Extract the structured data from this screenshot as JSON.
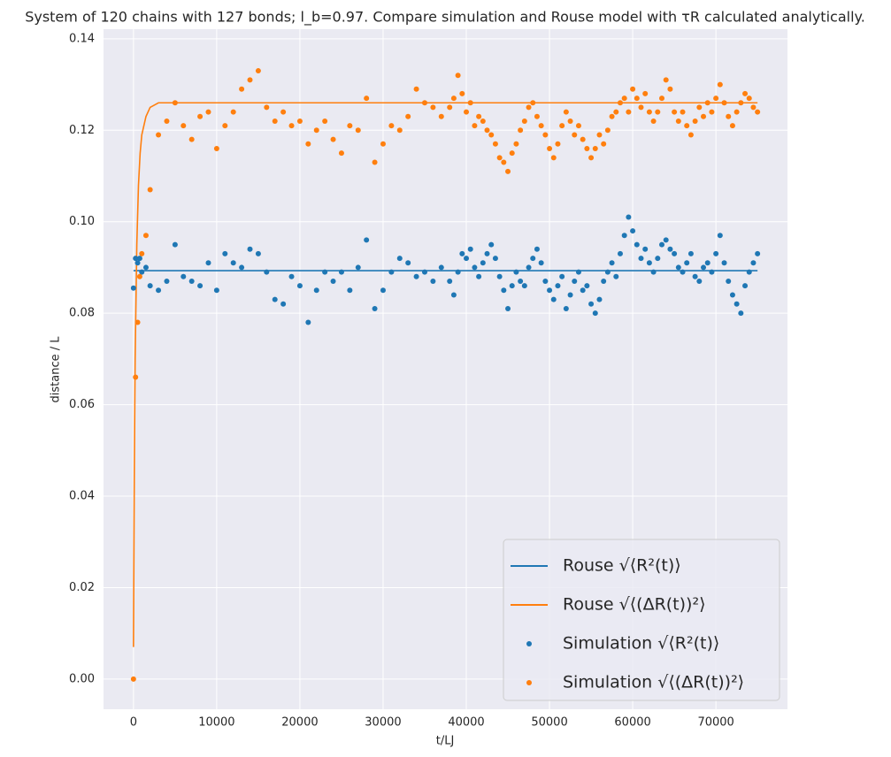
{
  "chart_data": {
    "type": "scatter",
    "title": "System of 120 chains with 127 bonds; l_b=0.97. Compare simulation and Rouse model with τR calculated analytically.",
    "xlabel": "t/LJ",
    "ylabel": "distance / L",
    "xlim": [
      -3600,
      78600
    ],
    "ylim": [
      -0.0066,
      0.1421
    ],
    "xticks": [
      0,
      10000,
      20000,
      30000,
      40000,
      50000,
      60000,
      70000
    ],
    "yticks": [
      {
        "value": 0,
        "label": "0.00"
      },
      {
        "value": 0.02,
        "label": "0.02"
      },
      {
        "value": 0.04,
        "label": "0.04"
      },
      {
        "value": 0.06,
        "label": "0.06"
      },
      {
        "value": 0.08,
        "label": "0.08"
      },
      {
        "value": 0.1,
        "label": "0.10"
      },
      {
        "value": 0.12,
        "label": "0.12"
      },
      {
        "value": 0.14,
        "label": "0.14"
      }
    ],
    "grid": true,
    "background": "#eaeaf2",
    "legend": "lower right",
    "series": [
      {
        "name": "Rouse √⟨R²(t)⟩",
        "type": "line",
        "color": "#1f77b4",
        "x": [
          0,
          75000
        ],
        "values": [
          0.0893,
          0.0893
        ]
      },
      {
        "name": "Rouse √⟨(ΔR(t))²⟩",
        "type": "line",
        "color": "#ff7f0e",
        "x": [
          0,
          100,
          200,
          400,
          600,
          800,
          1000,
          1500,
          2000,
          3000,
          75000
        ],
        "values": [
          0.007,
          0.045,
          0.07,
          0.095,
          0.108,
          0.115,
          0.119,
          0.123,
          0.125,
          0.126,
          0.126
        ]
      },
      {
        "name": "Simulation √⟨R²(t)⟩",
        "type": "scatter",
        "color": "#1f77b4",
        "x": [
          0,
          250,
          500,
          750,
          1000,
          1500,
          2000,
          3000,
          4000,
          5000,
          6000,
          7000,
          8000,
          9000,
          10000,
          11000,
          12000,
          13000,
          14000,
          15000,
          16000,
          17000,
          18000,
          19000,
          20000,
          21000,
          22000,
          23000,
          24000,
          25000,
          26000,
          27000,
          28000,
          29000,
          30000,
          31000,
          32000,
          33000,
          34000,
          35000,
          36000,
          37000,
          38000,
          38500,
          39000,
          39500,
          40000,
          40500,
          41000,
          41500,
          42000,
          42500,
          43000,
          43500,
          44000,
          44500,
          45000,
          45500,
          46000,
          46500,
          47000,
          47500,
          48000,
          48500,
          49000,
          49500,
          50000,
          50500,
          51000,
          51500,
          52000,
          52500,
          53000,
          53500,
          54000,
          54500,
          55000,
          55500,
          56000,
          56500,
          57000,
          57500,
          58000,
          58500,
          59000,
          59500,
          60000,
          60500,
          61000,
          61500,
          62000,
          62500,
          63000,
          63500,
          64000,
          64500,
          65000,
          65500,
          66000,
          66500,
          67000,
          67500,
          68000,
          68500,
          69000,
          69500,
          70000,
          70500,
          71000,
          71500,
          72000,
          72500,
          73000,
          73500,
          74000,
          74500,
          75000
        ],
        "values": [
          0.0855,
          0.092,
          0.091,
          0.092,
          0.089,
          0.09,
          0.086,
          0.085,
          0.087,
          0.095,
          0.088,
          0.087,
          0.086,
          0.091,
          0.085,
          0.093,
          0.091,
          0.09,
          0.094,
          0.093,
          0.089,
          0.083,
          0.082,
          0.088,
          0.086,
          0.078,
          0.085,
          0.089,
          0.087,
          0.089,
          0.085,
          0.09,
          0.096,
          0.081,
          0.085,
          0.089,
          0.092,
          0.091,
          0.088,
          0.089,
          0.087,
          0.09,
          0.087,
          0.084,
          0.089,
          0.093,
          0.092,
          0.094,
          0.09,
          0.088,
          0.091,
          0.093,
          0.095,
          0.092,
          0.088,
          0.085,
          0.081,
          0.086,
          0.089,
          0.087,
          0.086,
          0.09,
          0.092,
          0.094,
          0.091,
          0.087,
          0.085,
          0.083,
          0.086,
          0.088,
          0.081,
          0.084,
          0.087,
          0.089,
          0.085,
          0.086,
          0.082,
          0.08,
          0.083,
          0.087,
          0.089,
          0.091,
          0.088,
          0.093,
          0.097,
          0.101,
          0.098,
          0.095,
          0.092,
          0.094,
          0.091,
          0.089,
          0.092,
          0.095,
          0.096,
          0.094,
          0.093,
          0.09,
          0.089,
          0.091,
          0.093,
          0.088,
          0.087,
          0.09,
          0.091,
          0.089,
          0.093,
          0.097,
          0.091,
          0.087,
          0.084,
          0.082,
          0.08,
          0.086,
          0.089,
          0.091,
          0.093
        ]
      },
      {
        "name": "Simulation √⟨(ΔR(t))²⟩",
        "type": "scatter",
        "color": "#ff7f0e",
        "x": [
          0,
          250,
          500,
          750,
          1000,
          1500,
          2000,
          3000,
          4000,
          5000,
          6000,
          7000,
          8000,
          9000,
          10000,
          11000,
          12000,
          13000,
          14000,
          15000,
          16000,
          17000,
          18000,
          19000,
          20000,
          21000,
          22000,
          23000,
          24000,
          25000,
          26000,
          27000,
          28000,
          29000,
          30000,
          31000,
          32000,
          33000,
          34000,
          35000,
          36000,
          37000,
          38000,
          38500,
          39000,
          39500,
          40000,
          40500,
          41000,
          41500,
          42000,
          42500,
          43000,
          43500,
          44000,
          44500,
          45000,
          45500,
          46000,
          46500,
          47000,
          47500,
          48000,
          48500,
          49000,
          49500,
          50000,
          50500,
          51000,
          51500,
          52000,
          52500,
          53000,
          53500,
          54000,
          54500,
          55000,
          55500,
          56000,
          56500,
          57000,
          57500,
          58000,
          58500,
          59000,
          59500,
          60000,
          60500,
          61000,
          61500,
          62000,
          62500,
          63000,
          63500,
          64000,
          64500,
          65000,
          65500,
          66000,
          66500,
          67000,
          67500,
          68000,
          68500,
          69000,
          69500,
          70000,
          70500,
          71000,
          71500,
          72000,
          72500,
          73000,
          73500,
          74000,
          74500,
          75000
        ],
        "values": [
          0,
          0.066,
          0.078,
          0.088,
          0.093,
          0.097,
          0.107,
          0.119,
          0.122,
          0.126,
          0.121,
          0.118,
          0.123,
          0.124,
          0.116,
          0.121,
          0.124,
          0.129,
          0.131,
          0.133,
          0.125,
          0.122,
          0.124,
          0.121,
          0.122,
          0.117,
          0.12,
          0.122,
          0.118,
          0.115,
          0.121,
          0.12,
          0.127,
          0.113,
          0.117,
          0.121,
          0.12,
          0.123,
          0.129,
          0.126,
          0.125,
          0.123,
          0.125,
          0.127,
          0.132,
          0.128,
          0.124,
          0.126,
          0.121,
          0.123,
          0.122,
          0.12,
          0.119,
          0.117,
          0.114,
          0.113,
          0.111,
          0.115,
          0.117,
          0.12,
          0.122,
          0.125,
          0.126,
          0.123,
          0.121,
          0.119,
          0.116,
          0.114,
          0.117,
          0.121,
          0.124,
          0.122,
          0.119,
          0.121,
          0.118,
          0.116,
          0.114,
          0.116,
          0.119,
          0.117,
          0.12,
          0.123,
          0.124,
          0.126,
          0.127,
          0.124,
          0.129,
          0.127,
          0.125,
          0.128,
          0.124,
          0.122,
          0.124,
          0.127,
          0.131,
          0.129,
          0.124,
          0.122,
          0.124,
          0.121,
          0.119,
          0.122,
          0.125,
          0.123,
          0.126,
          0.124,
          0.127,
          0.13,
          0.126,
          0.123,
          0.121,
          0.124,
          0.126,
          0.128,
          0.127,
          0.125,
          0.124
        ]
      }
    ]
  }
}
